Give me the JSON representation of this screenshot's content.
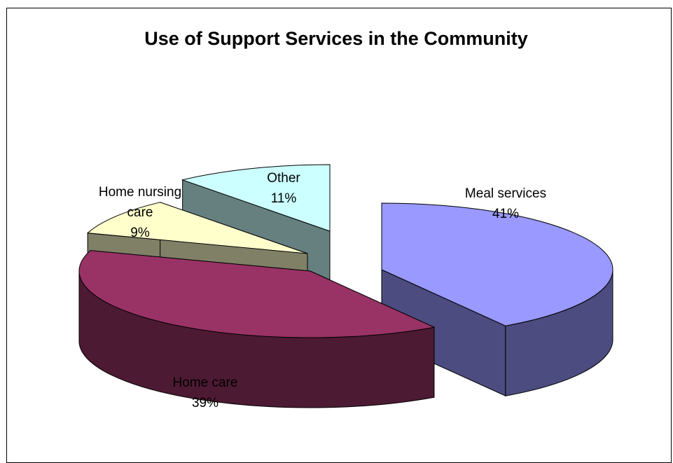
{
  "chart_data": {
    "type": "pie",
    "title": "Use of Support Services in the Community",
    "style": "3d-exploded",
    "legend": "none",
    "slices": [
      {
        "name": "Meal services",
        "label_lines": [
          "Meal services"
        ],
        "percent_label": "41%",
        "value": 41,
        "top_color": "#9999FF",
        "side_color": "#4C4C80"
      },
      {
        "name": "Home care",
        "label_lines": [
          "Home care"
        ],
        "percent_label": "39%",
        "value": 39,
        "top_color": "#993366",
        "side_color": "#4D1A33"
      },
      {
        "name": "Home nursing care",
        "label_lines": [
          "Home nursing",
          "care"
        ],
        "percent_label": "9%",
        "value": 9,
        "top_color": "#FFFFCC",
        "side_color": "#808066"
      },
      {
        "name": "Other",
        "label_lines": [
          "Other"
        ],
        "percent_label": "11%",
        "value": 11,
        "top_color": "#CCFFFF",
        "side_color": "#668080"
      }
    ]
  }
}
